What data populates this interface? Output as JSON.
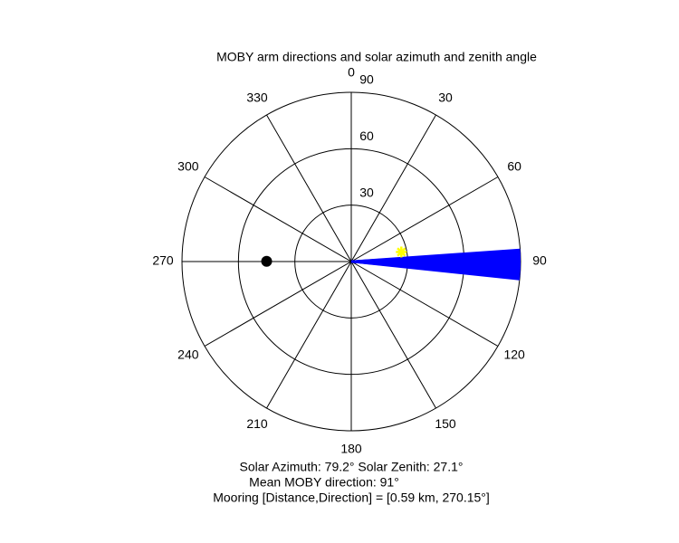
{
  "chart_data": {
    "type": "polar",
    "title": "MOBY arm directions and solar azimuth and zenith angle",
    "rlim": [
      0,
      90
    ],
    "rticks": [
      30,
      60,
      90
    ],
    "thetaticks": [
      0,
      30,
      60,
      90,
      120,
      150,
      180,
      210,
      240,
      270,
      300,
      330
    ],
    "arm_directions": {
      "color": "#0000ff",
      "values": [
        86,
        86.5,
        87,
        87.5,
        88,
        88.5,
        89,
        89.5,
        90,
        90.5,
        91,
        91.5,
        92,
        92.5,
        93,
        93.5,
        94,
        94.5,
        95,
        95.5,
        96
      ]
    },
    "sun": {
      "azimuth": 79.2,
      "zenith": 27.1,
      "color": "#ffff00"
    },
    "mooring": {
      "direction": 270.15,
      "r": 45,
      "color": "#000000"
    },
    "annotations": [
      "Solar Azimuth: 79.2°   Solar Zenith: 27.1°",
      "Mean MOBY direction: 91°",
      "Mooring [Distance,Direction] = [0.59 km, 270.15°]"
    ]
  }
}
